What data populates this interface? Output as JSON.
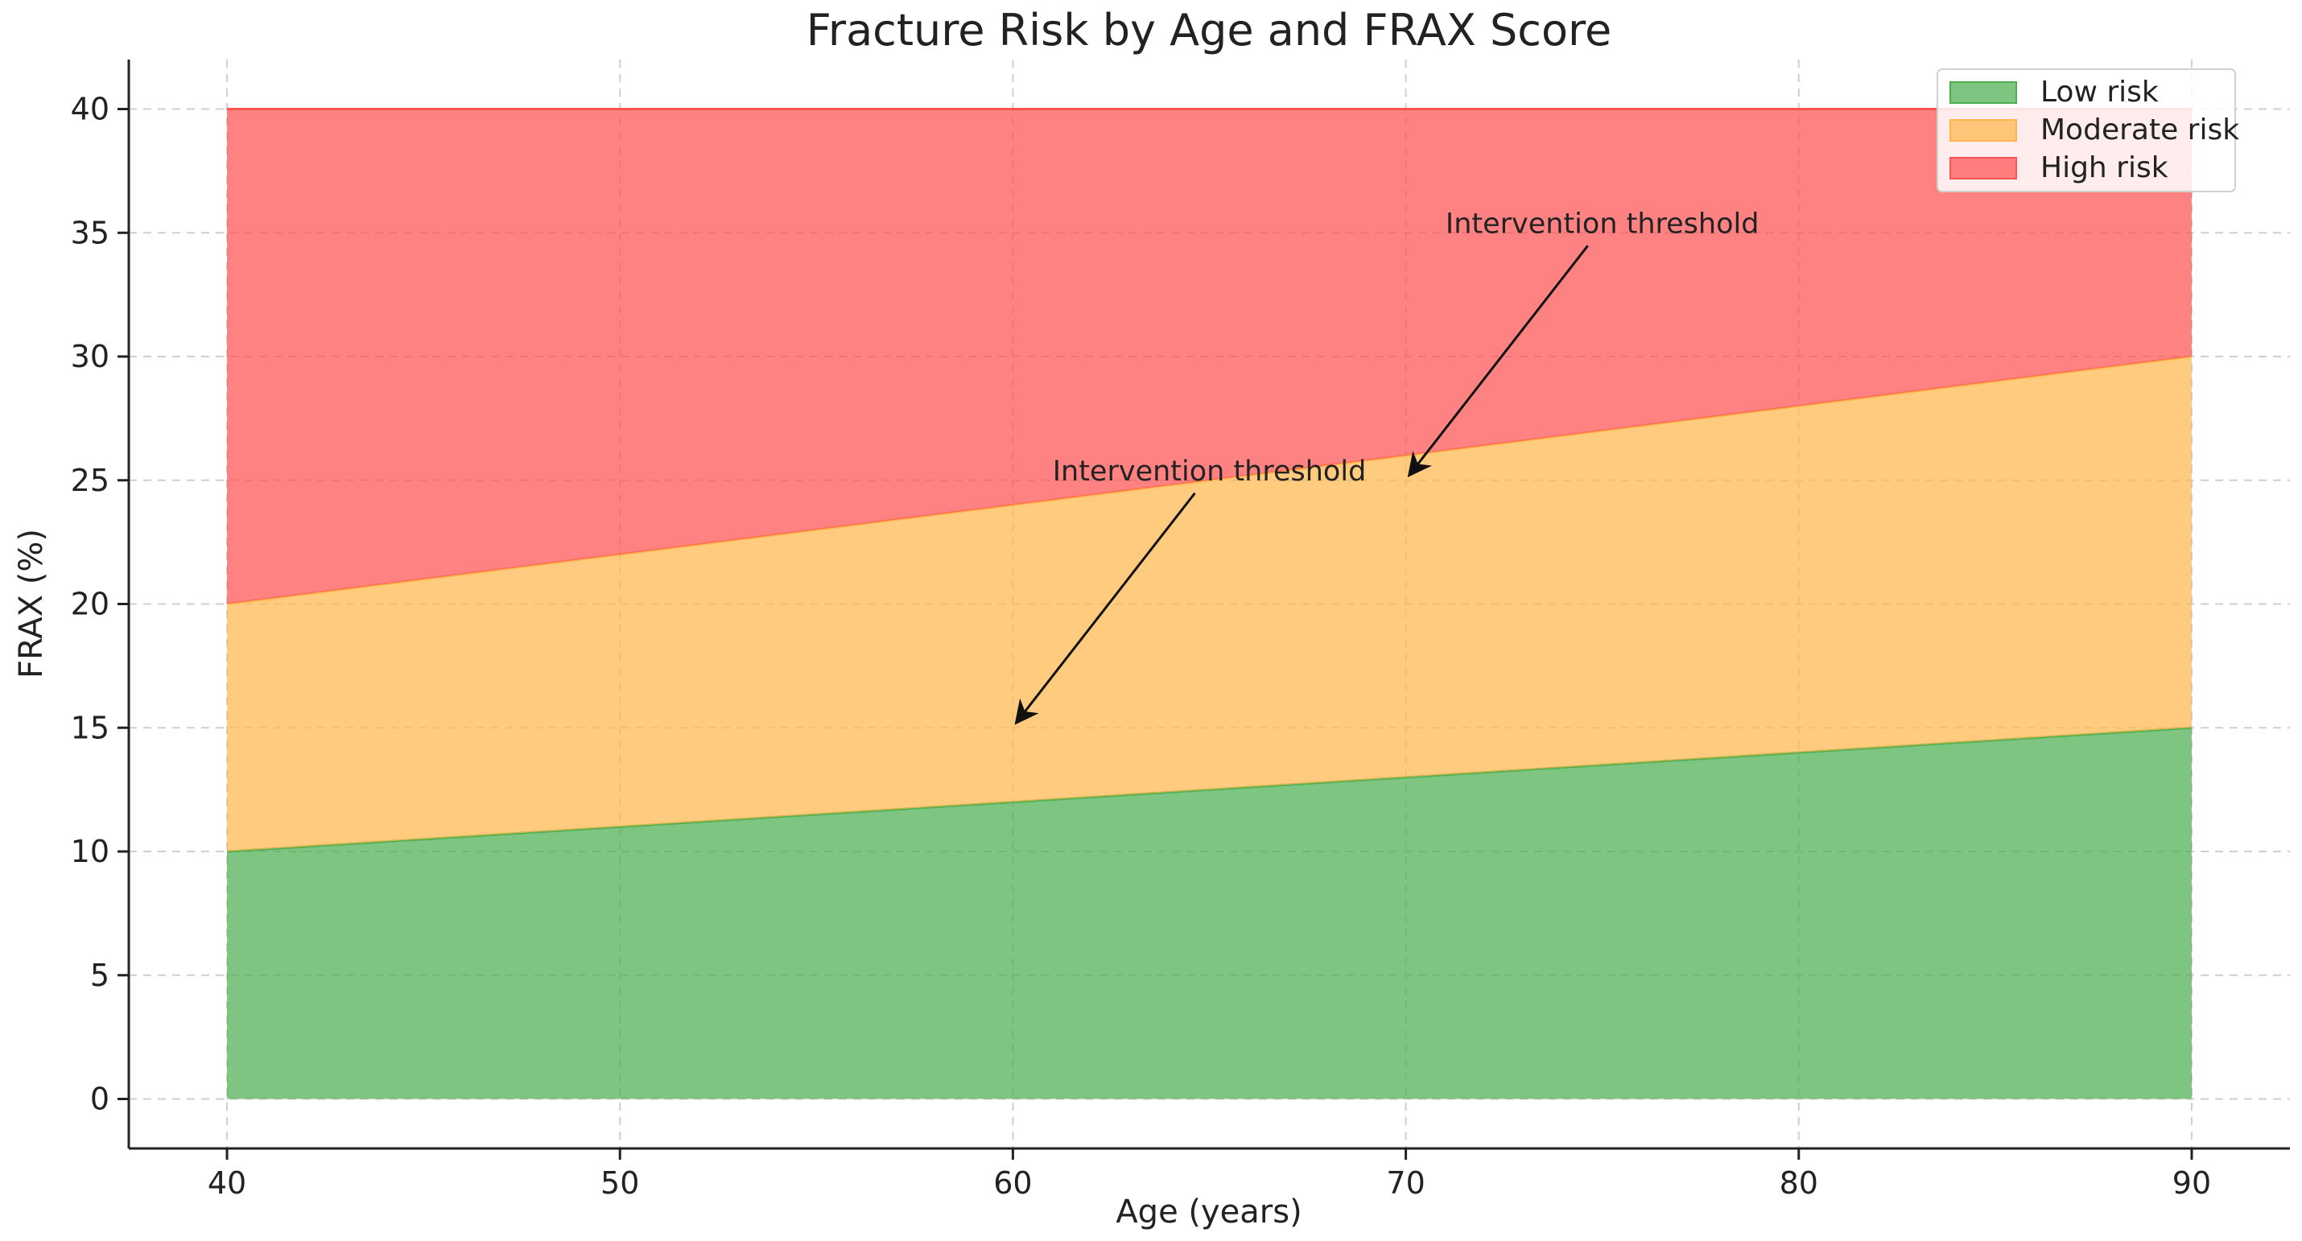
{
  "chart_data": {
    "type": "area",
    "title": "Fracture Risk by Age and FRAX Score",
    "xlabel": "Age (years)",
    "ylabel": "FRAX (%)",
    "x": [
      40,
      50,
      60,
      70,
      80,
      90
    ],
    "xlim": [
      37.5,
      92.5
    ],
    "ylim": [
      -2,
      42
    ],
    "xticks": [
      40,
      50,
      60,
      70,
      80,
      90
    ],
    "yticks": [
      0,
      5,
      10,
      15,
      20,
      25,
      30,
      35,
      40
    ],
    "grid": true,
    "legend_position": "top-right",
    "series": [
      {
        "name": "Low risk",
        "lower": [
          0,
          0,
          0,
          0,
          0,
          0
        ],
        "upper": [
          10,
          11,
          12,
          13,
          14,
          15
        ],
        "color": "#4CAF50"
      },
      {
        "name": "Moderate risk",
        "lower": [
          10,
          11,
          12,
          13,
          14,
          15
        ],
        "upper": [
          20,
          22,
          24,
          26,
          28,
          30
        ],
        "color": "#FFB74D"
      },
      {
        "name": "High risk",
        "lower": [
          20,
          22,
          24,
          26,
          28,
          30
        ],
        "upper": [
          40,
          40,
          40,
          40,
          40,
          40
        ],
        "color": "#FF5252"
      }
    ],
    "annotations": [
      {
        "text": "Intervention threshold",
        "point": [
          60,
          15
        ],
        "text_at": [
          65,
          25
        ]
      },
      {
        "text": "Intervention threshold",
        "point": [
          70,
          25
        ],
        "text_at": [
          75,
          35
        ]
      }
    ]
  }
}
